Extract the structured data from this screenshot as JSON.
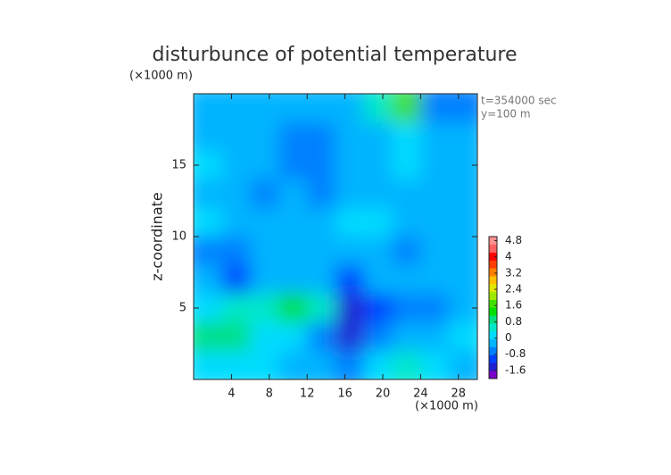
{
  "chart_data": {
    "type": "heatmap",
    "title": "disturbunce of potential temperature",
    "y_unit_label": "(×1000 m)",
    "x_unit_label": "(×1000 m)",
    "ylabel": "z-coordinate",
    "annotations": [
      "t=354000 sec",
      "y=100 m"
    ],
    "x": [
      1.5,
      4.5,
      7.5,
      10.5,
      13.5,
      16.5,
      19.5,
      22.5,
      25.5,
      28.5
    ],
    "y": [
      19,
      17,
      15,
      13,
      11,
      9,
      7,
      5,
      3,
      1
    ],
    "z": [
      [
        -0.4,
        -0.4,
        -0.2,
        -0.4,
        -0.2,
        -0.2,
        0.4,
        1.6,
        -0.8,
        -0.8
      ],
      [
        -0.2,
        -0.2,
        -0.4,
        -0.8,
        -0.6,
        -0.2,
        -0.2,
        0,
        -0.2,
        -0.4
      ],
      [
        0,
        -0.2,
        -0.4,
        -0.8,
        -0.6,
        -0.2,
        -0.2,
        0,
        -0.4,
        -0.2
      ],
      [
        -0.2,
        -0.4,
        -0.6,
        -0.4,
        -0.6,
        -0.2,
        -0.4,
        -0.4,
        -0.2,
        -0.2
      ],
      [
        0,
        -0.4,
        -0.2,
        -0.4,
        -0.2,
        0.2,
        0,
        -0.4,
        -0.2,
        -0.4
      ],
      [
        -0.6,
        -0.6,
        -0.2,
        -0.2,
        -0.4,
        -0.2,
        -0.2,
        -0.6,
        -0.2,
        -0.4
      ],
      [
        -0.4,
        -1.0,
        -0.4,
        -0.2,
        -0.4,
        -1.0,
        -0.2,
        -0.2,
        -0.4,
        -0.2
      ],
      [
        0.2,
        0.4,
        0.6,
        1.2,
        0.4,
        -1.6,
        -1.0,
        -0.6,
        -0.6,
        -0.4
      ],
      [
        0.8,
        0.8,
        0,
        0,
        -0.8,
        -1.4,
        -0.8,
        -0.4,
        -0.2,
        0
      ],
      [
        0.2,
        0.2,
        0,
        -0.2,
        -0.2,
        -0.6,
        0,
        0.4,
        0,
        -0.2
      ]
    ],
    "xlim": [
      0,
      30
    ],
    "ylim": [
      0,
      20
    ],
    "xticks": [
      4,
      8,
      12,
      16,
      20,
      24,
      28
    ],
    "yticks": [
      5,
      10,
      15
    ],
    "colorbar": {
      "lim": [
        -2,
        5
      ],
      "ticks": [
        -1.6,
        -0.8,
        0,
        0.8,
        1.6,
        2.4,
        3.2,
        4,
        4.8
      ],
      "colors": [
        "#7b00c8",
        "#2020d0",
        "#0040ff",
        "#0080ff",
        "#00b4ff",
        "#00dcff",
        "#00e8c8",
        "#00e080",
        "#00e000",
        "#40e000",
        "#a0e800",
        "#e0e800",
        "#ffc000",
        "#ff8000",
        "#ff4000",
        "#ff0000",
        "#ff6060",
        "#ff9090"
      ]
    }
  }
}
